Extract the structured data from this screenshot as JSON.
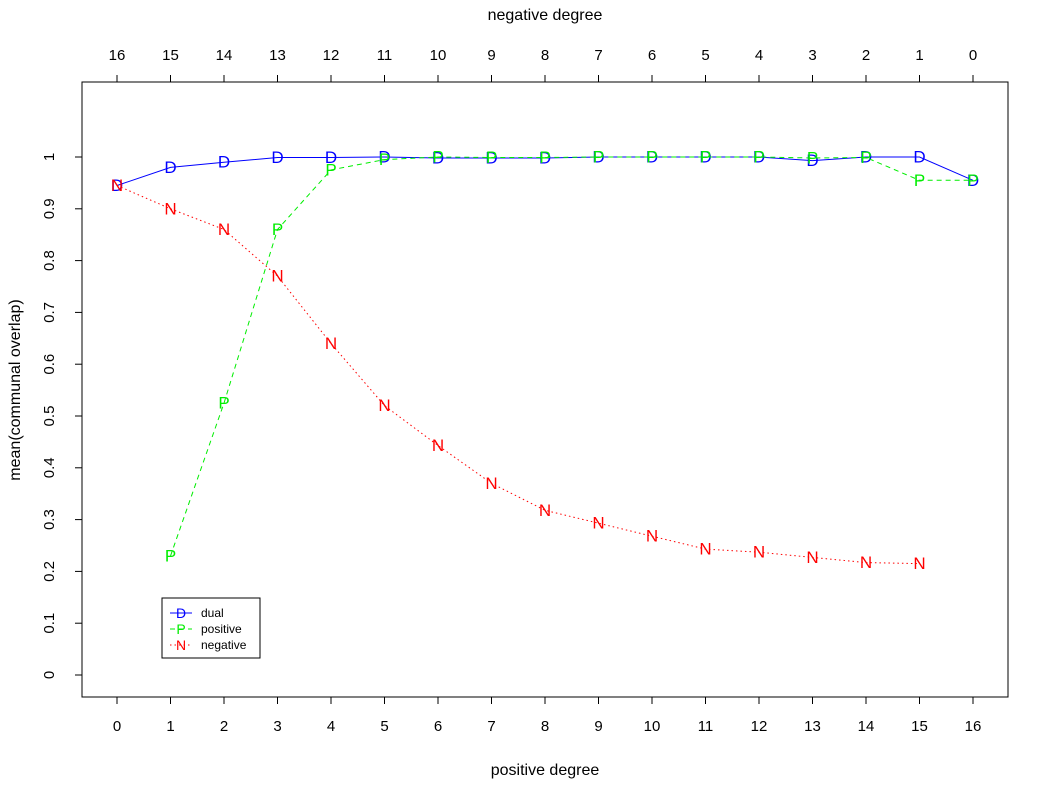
{
  "chart_data": {
    "type": "line",
    "xlabel": "positive degree",
    "x2label": "negative degree",
    "ylabel": "mean(communal overlap)",
    "xlim": [
      0,
      16
    ],
    "ylim": [
      0,
      1.1
    ],
    "x_ticks": [
      0,
      1,
      2,
      3,
      4,
      5,
      6,
      7,
      8,
      9,
      10,
      11,
      12,
      13,
      14,
      15,
      16
    ],
    "x_tick_labels": [
      "0",
      "1",
      "2",
      "3",
      "4",
      "5",
      "6",
      "7",
      "8",
      "9",
      "10",
      "11",
      "12",
      "13",
      "14",
      "15",
      "16"
    ],
    "x2_tick_labels": [
      "16",
      "15",
      "14",
      "13",
      "12",
      "11",
      "10",
      "9",
      "8",
      "7",
      "6",
      "5",
      "4",
      "3",
      "2",
      "1",
      "0"
    ],
    "y_ticks": [
      0,
      0.1,
      0.2,
      0.3,
      0.4,
      0.5,
      0.6,
      0.7,
      0.8,
      0.9,
      1
    ],
    "y_tick_labels": [
      "0",
      "0.1",
      "0.2",
      "0.3",
      "0.4",
      "0.5",
      "0.6",
      "0.7",
      "0.8",
      "0.9",
      "1"
    ],
    "grid": false,
    "legend_position": "bottom-left",
    "series": [
      {
        "name": "dual",
        "marker": "D",
        "color": "#0000ff",
        "line_style": "solid",
        "x": [
          0,
          1,
          2,
          3,
          4,
          5,
          6,
          7,
          8,
          9,
          10,
          11,
          12,
          13,
          14,
          15,
          16
        ],
        "y": [
          0.945,
          0.98,
          0.99,
          0.999,
          0.999,
          1.0,
          0.998,
          0.998,
          0.998,
          1.0,
          1.0,
          1.0,
          1.0,
          0.993,
          1.0,
          1.0,
          0.955
        ]
      },
      {
        "name": "positive",
        "marker": "P",
        "color": "#00ee00",
        "line_style": "dashed",
        "x": [
          1,
          2,
          3,
          4,
          5,
          6,
          7,
          8,
          9,
          10,
          11,
          12,
          13,
          14,
          15,
          16
        ],
        "y": [
          0.23,
          0.525,
          0.86,
          0.975,
          0.995,
          1.0,
          0.999,
          0.999,
          1.0,
          1.0,
          1.0,
          1.0,
          0.998,
          0.999,
          0.955,
          0.955
        ]
      },
      {
        "name": "negative",
        "marker": "N",
        "color": "#ff0000",
        "line_style": "dotted",
        "x": [
          0,
          1,
          2,
          3,
          4,
          5,
          6,
          7,
          8,
          9,
          10,
          11,
          12,
          13,
          14,
          15
        ],
        "y": [
          0.945,
          0.9,
          0.86,
          0.77,
          0.64,
          0.52,
          0.443,
          0.37,
          0.318,
          0.293,
          0.268,
          0.243,
          0.237,
          0.227,
          0.217,
          0.215
        ]
      }
    ]
  }
}
